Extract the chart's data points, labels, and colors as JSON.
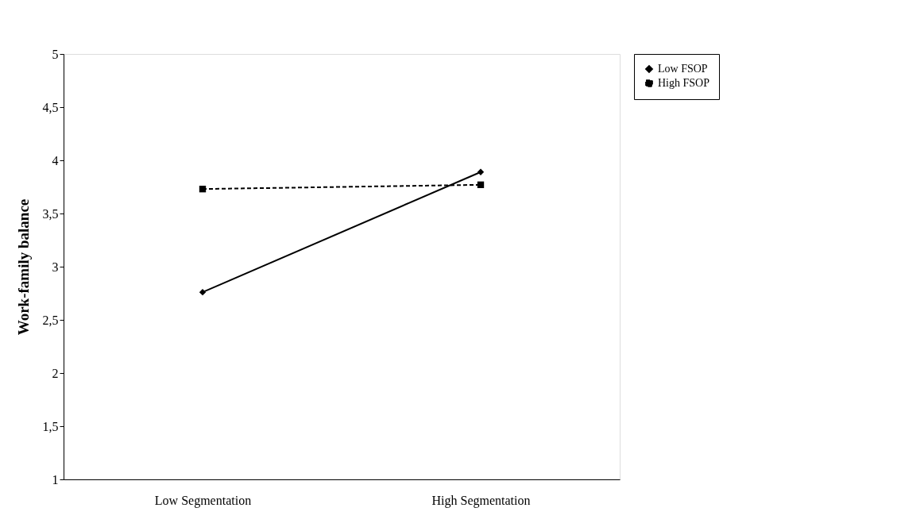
{
  "chart_data": {
    "type": "line",
    "ylabel": "Work-family balance",
    "categories": [
      "Low Segmentation",
      "High Segmentation"
    ],
    "series": [
      {
        "name": "Low FSOP",
        "color": "#000000",
        "marker": "diamond",
        "line_style": "solid",
        "values": [
          2.76,
          3.89
        ]
      },
      {
        "name": "High FSOP",
        "color": "#000000",
        "marker": "square",
        "line_style": "dashed",
        "values": [
          3.73,
          3.77
        ]
      }
    ],
    "ylim": [
      1,
      5
    ],
    "yticks": [
      1,
      {
        "value": 1.5,
        "label": "1,5"
      },
      2,
      {
        "value": 2.5,
        "label": "2,5"
      },
      3,
      {
        "value": 3.5,
        "label": "3,5"
      },
      4,
      {
        "value": 4.5,
        "label": "4,5"
      },
      5
    ],
    "grid": false,
    "legend": "right"
  }
}
